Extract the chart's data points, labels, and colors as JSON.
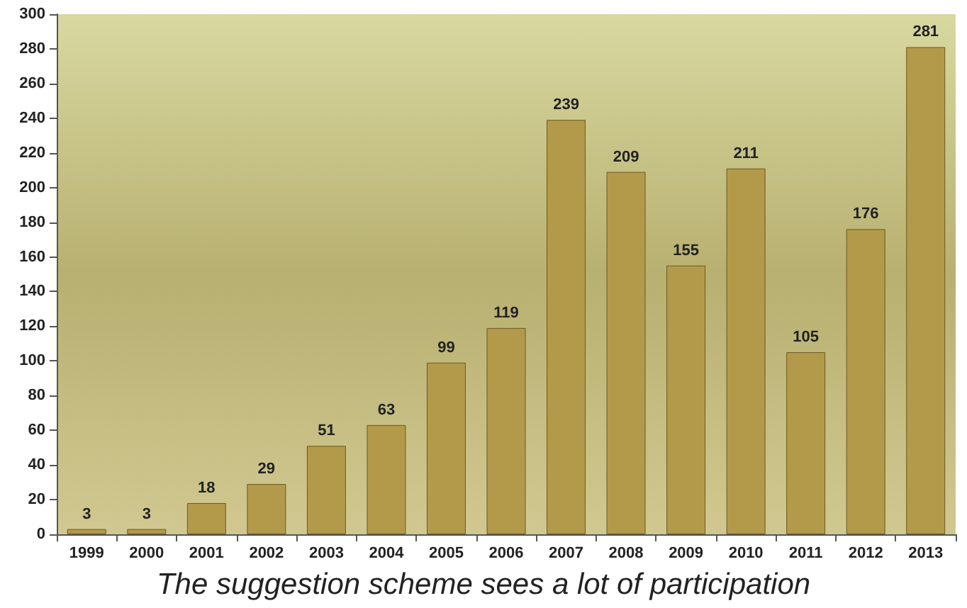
{
  "chart_data": {
    "type": "bar",
    "categories": [
      "1999",
      "2000",
      "2001",
      "2002",
      "2003",
      "2004",
      "2005",
      "2006",
      "2007",
      "2008",
      "2009",
      "2010",
      "2011",
      "2012",
      "2013"
    ],
    "values": [
      3,
      3,
      18,
      29,
      51,
      63,
      99,
      119,
      239,
      209,
      155,
      211,
      105,
      176,
      281
    ],
    "color": "#b39a4a",
    "ylim": [
      0,
      300
    ],
    "yticks": [
      0,
      20,
      40,
      60,
      80,
      100,
      120,
      140,
      160,
      180,
      200,
      220,
      240,
      260,
      280,
      300
    ],
    "grid": false,
    "data_labels": true,
    "annotations": [
      "The suggestion scheme sees a lot of participation"
    ]
  }
}
